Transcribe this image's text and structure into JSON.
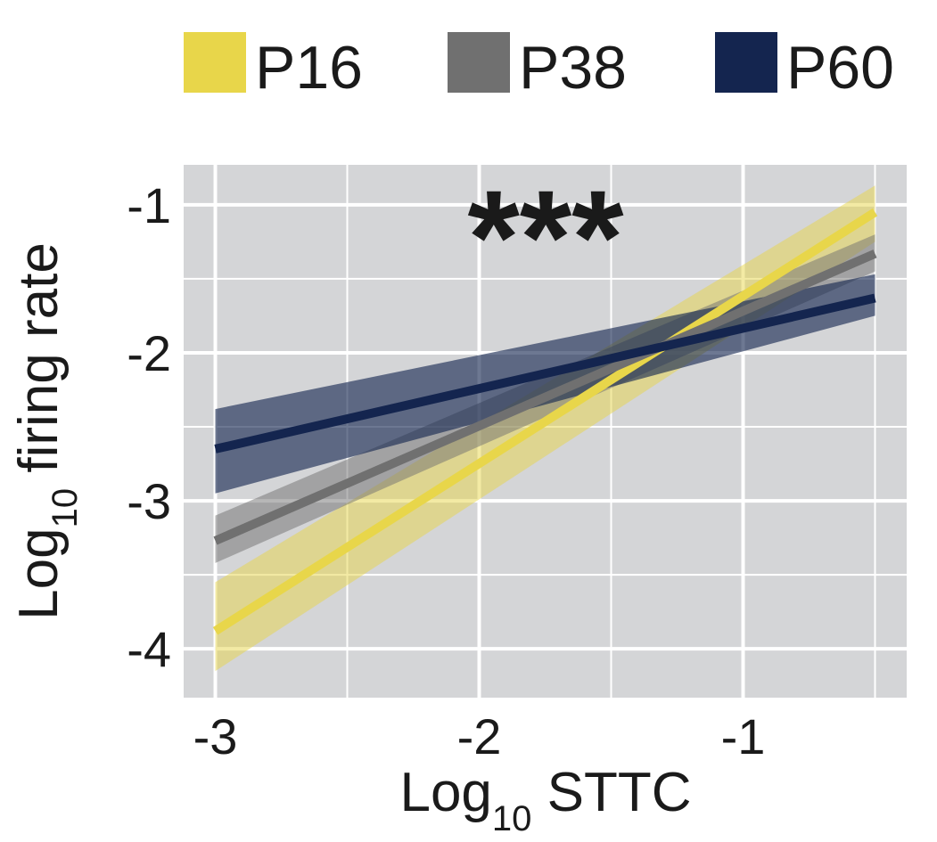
{
  "chart_data": {
    "type": "line",
    "x": [
      -3,
      -0.5
    ],
    "series": [
      {
        "name": "P16",
        "color": "#e8d64a",
        "values": [
          -3.88,
          -1.05
        ],
        "ci_low": [
          -4.15,
          -1.25
        ],
        "ci_high": [
          -3.55,
          -0.87
        ]
      },
      {
        "name": "P38",
        "color": "#707070",
        "values": [
          -3.27,
          -1.33
        ],
        "ci_low": [
          -3.42,
          -1.45
        ],
        "ci_high": [
          -3.1,
          -1.2
        ]
      },
      {
        "name": "P60",
        "color": "#14254f",
        "values": [
          -2.65,
          -1.63
        ],
        "ci_low": [
          -2.95,
          -1.75
        ],
        "ci_high": [
          -2.38,
          -1.47
        ]
      }
    ],
    "xlabel": {
      "main": "Log",
      "sub": "10",
      "rest": " STTC"
    },
    "ylabel": {
      "main": "Log",
      "sub": "10",
      "rest": " firing rate"
    },
    "xticks": [
      -3,
      -2,
      -1
    ],
    "xtick_labels": [
      "-3",
      "-2",
      "-1"
    ],
    "yticks": [
      -4,
      -3,
      -2,
      -1
    ],
    "ytick_labels": [
      "-4",
      "-3",
      "-2",
      "-1"
    ],
    "xlim": [
      -3.12,
      -0.38
    ],
    "ylim": [
      -4.33,
      -0.73
    ],
    "grid": true,
    "legend_position": "top",
    "annotation": "***",
    "panel_color": "#d4d5d7",
    "grid_color": "#ffffff"
  }
}
